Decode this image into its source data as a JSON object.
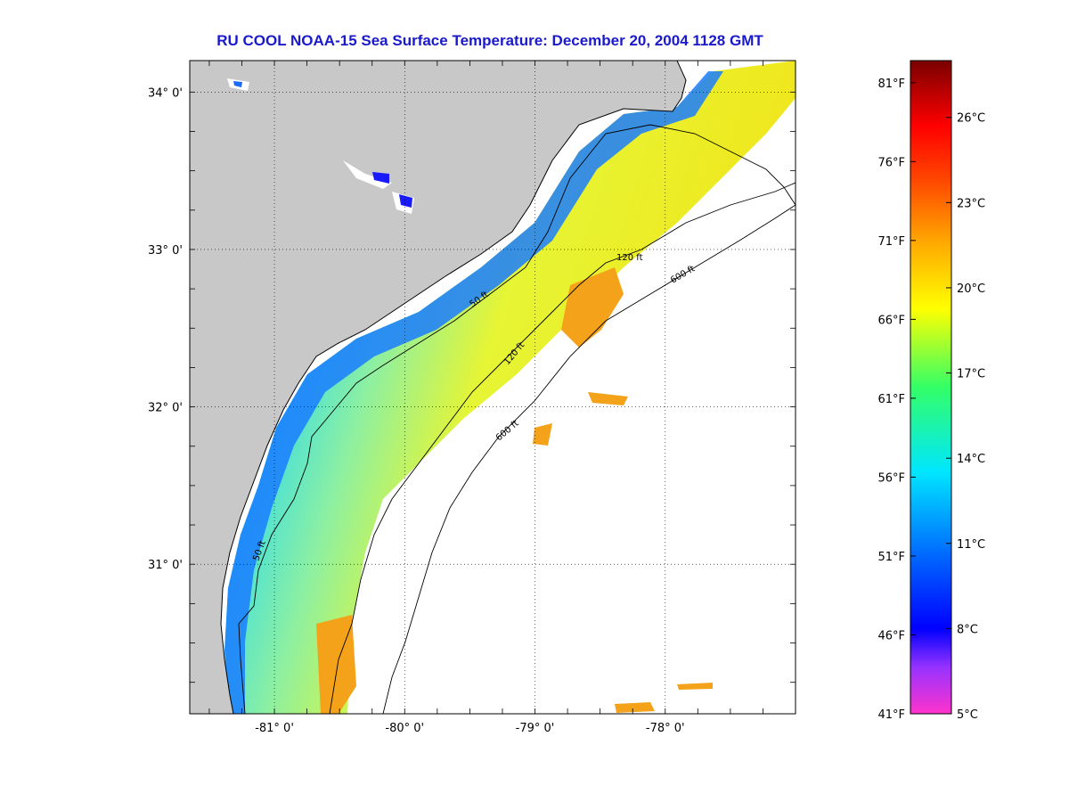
{
  "title": "RU COOL  NOAA-15  Sea Surface Temperature:  December 20, 2004 1128 GMT",
  "colors": {
    "title": "#1a1acc",
    "land": "#c8c8c8",
    "ocean_nodata": "#ffffff",
    "frame": "#000000"
  },
  "map": {
    "lon_range": [
      -81.65,
      -77.0
    ],
    "lat_range": [
      30.05,
      34.2
    ],
    "lon_ticks": [
      {
        "value": -81.0,
        "label": "-81° 0'"
      },
      {
        "value": -80.0,
        "label": "-80° 0'"
      },
      {
        "value": -79.0,
        "label": "-79° 0'"
      },
      {
        "value": -78.0,
        "label": "-78° 0'"
      }
    ],
    "lat_ticks": [
      {
        "value": 34.0,
        "label": "34° 0'"
      },
      {
        "value": 33.0,
        "label": "33° 0'"
      },
      {
        "value": 32.0,
        "label": "32° 0'"
      },
      {
        "value": 31.0,
        "label": "31° 0'"
      }
    ],
    "grid": "dotted",
    "isobaths": [
      {
        "depth": "50 ft",
        "label": "50 ft"
      },
      {
        "depth": "120 ft",
        "label": "120 ft"
      },
      {
        "depth": "600 ft",
        "label": "600 ft"
      }
    ]
  },
  "colorbar": {
    "fahrenheit": [
      "81°F",
      "76°F",
      "71°F",
      "66°F",
      "61°F",
      "56°F",
      "51°F",
      "46°F",
      "41°F"
    ],
    "celsius": [
      "26°C",
      "23°C",
      "20°C",
      "17°C",
      "14°C",
      "11°C",
      "8°C",
      "5°C"
    ],
    "range_c": [
      5,
      28
    ]
  }
}
